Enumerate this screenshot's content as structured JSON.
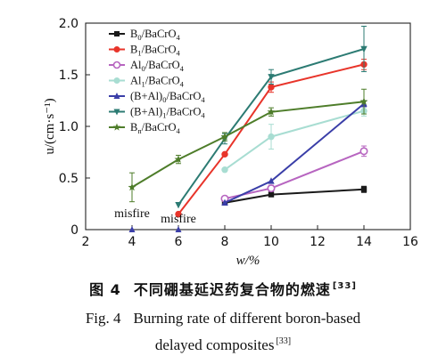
{
  "chart_data": {
    "type": "line",
    "xlabel": "w/%",
    "ylabel": "u/(cm·s⁻¹)",
    "xlim": [
      2,
      16
    ],
    "ylim": [
      0,
      2.0
    ],
    "xticks": [
      2,
      4,
      6,
      8,
      10,
      12,
      14,
      16
    ],
    "yticks": [
      0,
      0.5,
      1.0,
      1.5,
      2.0
    ],
    "ytick_labels": [
      "0",
      "0.5",
      "1.0",
      "1.5",
      "2.0"
    ],
    "legend_position": "top-left",
    "series": [
      {
        "name": "B0/BaCrO4",
        "label_main": "B",
        "label_sub": "0",
        "label_tail": "/BaCrO",
        "label_tail_sub": "4",
        "color": "#1a1a1a",
        "marker": "square",
        "x": [
          8,
          10,
          14
        ],
        "y": [
          0.26,
          0.34,
          0.39
        ],
        "err": [
          0.02,
          0.02,
          0.03
        ]
      },
      {
        "name": "B1/BaCrO4",
        "label_main": "B",
        "label_sub": "1",
        "label_tail": "/BaCrO",
        "label_tail_sub": "4",
        "color": "#e8342a",
        "marker": "circle",
        "x": [
          6,
          8,
          10,
          14
        ],
        "y": [
          0.15,
          0.73,
          1.38,
          1.6
        ],
        "err": [
          0,
          0,
          0.05,
          0.05
        ]
      },
      {
        "name": "Al0/BaCrO4",
        "label_main": "Al",
        "label_sub": "0",
        "label_tail": "/BaCrO",
        "label_tail_sub": "4",
        "color": "#b765c0",
        "marker": "open-circle",
        "x": [
          8,
          10,
          14
        ],
        "y": [
          0.3,
          0.4,
          0.76
        ],
        "err": [
          0.02,
          0.03,
          0.05
        ]
      },
      {
        "name": "Al1/BaCrO4",
        "label_main": "Al",
        "label_sub": "1",
        "label_tail": "/BaCrO",
        "label_tail_sub": "4",
        "color": "#a8ddd2",
        "marker": "circle",
        "x": [
          8,
          10,
          14
        ],
        "y": [
          0.58,
          0.9,
          1.15
        ],
        "err": [
          0,
          0.12,
          0.05
        ]
      },
      {
        "name": "(B+Al)0/BaCrO4",
        "label_main": "(B+Al)",
        "label_sub": "0",
        "label_tail": "/BaCrO",
        "label_tail_sub": "4",
        "color": "#3a3ea8",
        "marker": "triangle-up",
        "x": [
          8,
          10,
          14
        ],
        "y": [
          0.26,
          0.47,
          1.22
        ],
        "err": [
          0,
          0,
          0.03
        ]
      },
      {
        "name": "(B+Al)1/BaCrO4",
        "label_main": "(B+Al)",
        "label_sub": "1",
        "label_tail": "/BaCrO",
        "label_tail_sub": "4",
        "color": "#2c7b73",
        "marker": "triangle-down",
        "x": [
          6,
          8,
          10,
          14
        ],
        "y": [
          0.24,
          0.88,
          1.48,
          1.75
        ],
        "err": [
          0,
          0.05,
          0.07,
          0.22
        ]
      },
      {
        "name": "Bn/BaCrO4",
        "label_main": "B",
        "label_sub": "n",
        "label_tail": "/BaCrO",
        "label_tail_sub": "4",
        "color": "#4e7d2a",
        "marker": "star",
        "x": [
          4,
          6,
          8,
          10,
          14
        ],
        "y": [
          0.41,
          0.68,
          0.9,
          1.14,
          1.24
        ],
        "err": [
          0.14,
          0.04,
          0.04,
          0.04,
          0.12
        ]
      }
    ],
    "misfire_points": [
      {
        "x": 4,
        "y": 0,
        "color": "#3a3ea8"
      },
      {
        "x": 6,
        "y": 0,
        "color": "#3a3ea8"
      }
    ],
    "annotations": [
      {
        "text": "misfire",
        "x": 4,
        "y": 0.12
      },
      {
        "text": "misfire",
        "x": 6,
        "y": 0.07
      }
    ]
  },
  "caption": {
    "zh_fig": "图 4",
    "zh_title": "不同硼基延迟药复合物的燃速",
    "ref": "[33]",
    "en_fig": "Fig. 4",
    "en_title_line1": "Burning rate of different boron-based",
    "en_title_line2": "delayed composites"
  }
}
